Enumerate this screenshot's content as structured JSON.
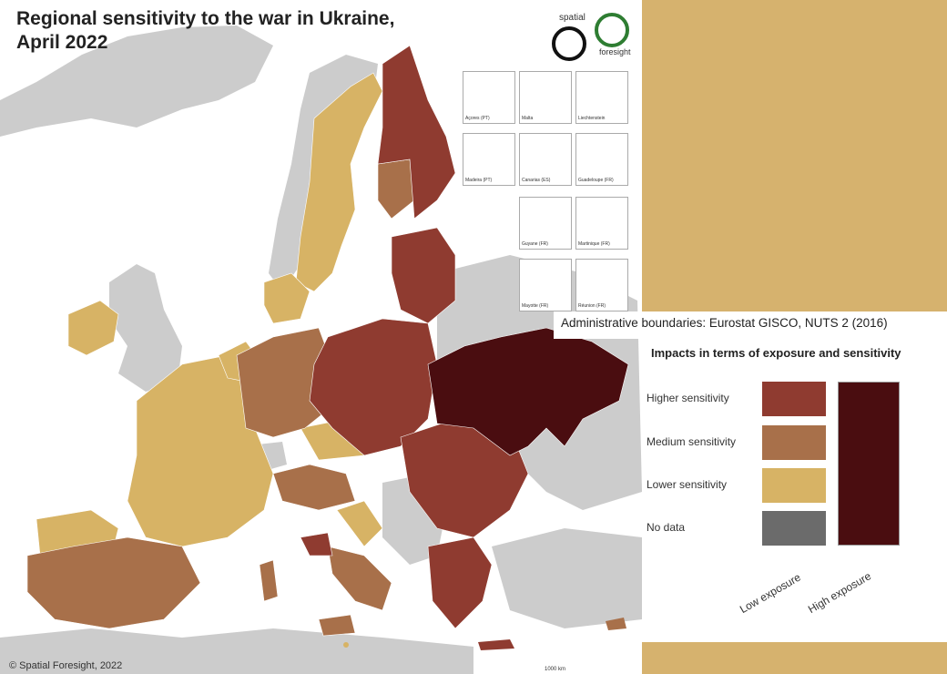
{
  "title_line1": "Regional sensitivity to the war in Ukraine,",
  "title_line2": "April 2022",
  "logo": {
    "word1": "spatial",
    "word2": "foresight"
  },
  "insets": [
    {
      "label": "Açores (PT)",
      "scale": "50 km"
    },
    {
      "label": "Malta",
      "scale": "10 km"
    },
    {
      "label": "Liechtenstein",
      "scale": "5 km"
    },
    {
      "label": "Madeira (PT)",
      "scale": "20 km"
    },
    {
      "label": "Canarias (ES)",
      "scale": "50 km"
    },
    {
      "label": "Guadeloupe (FR)",
      "scale": "10 km"
    },
    {
      "label": "Guyane (FR)",
      "scale": "100 km"
    },
    {
      "label": "Martinique (FR)",
      "scale": "10 km"
    },
    {
      "label": "Mayotte (FR)",
      "scale": "10 km"
    },
    {
      "label": "Réunion (FR)",
      "scale": "10 km"
    }
  ],
  "source": "Administrative boundaries: Eurostat GISCO, NUTS 2 (2016)",
  "copyright": "© Spatial Foresight, 2022",
  "scale_bar": "1000 km",
  "legend": {
    "title": "Impacts in terms of exposure and sensitivity",
    "items": [
      {
        "label": "Higher sensitivity",
        "color": "#8f3b30"
      },
      {
        "label": "Medium sensitivity",
        "color": "#a8704a"
      },
      {
        "label": "Lower sensitivity",
        "color": "#d7b365"
      },
      {
        "label": "No data",
        "color": "#6b6b6b"
      }
    ],
    "high_exposure_color": "#4a0d10",
    "x_labels": [
      "Low exposure",
      "High exposure"
    ]
  },
  "colors": {
    "background_panel": "#d6b26e",
    "non_eu": "#cccccc",
    "higher": "#8f3b30",
    "medium": "#a8704a",
    "lower": "#d7b365",
    "ukraine": "#4a0d10"
  }
}
